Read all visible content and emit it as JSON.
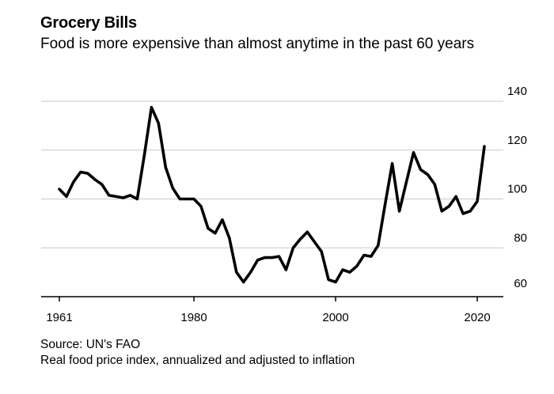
{
  "chart_data": {
    "type": "line",
    "title": "Grocery Bills",
    "subtitle": "Food is more expensive than almost anytime in the past 60 years",
    "xlabel": "",
    "ylabel": "",
    "xlim": [
      1961,
      2021
    ],
    "ylim": [
      60,
      140
    ],
    "x_ticks": [
      "1961",
      "1980",
      "2000",
      "2020"
    ],
    "x_tick_values": [
      1961,
      1980,
      2000,
      2020
    ],
    "y_ticks": [
      "60",
      "80",
      "100",
      "120",
      "140"
    ],
    "y_tick_values": [
      60,
      80,
      100,
      120,
      140
    ],
    "grid": "horizontal",
    "line_color": "#000000",
    "series": [
      {
        "x": [
          1961,
          1962,
          1963,
          1964,
          1965,
          1966,
          1967,
          1968,
          1969,
          1970,
          1971,
          1972,
          1973,
          1974,
          1975,
          1976,
          1977,
          1978,
          1979,
          1980,
          1981,
          1982,
          1983,
          1984,
          1985,
          1986,
          1987,
          1988,
          1989,
          1990,
          1991,
          1992,
          1993,
          1994,
          1995,
          1996,
          1997,
          1998,
          1999,
          2000,
          2001,
          2002,
          2003,
          2004,
          2005,
          2006,
          2007,
          2008,
          2009,
          2010,
          2011,
          2012,
          2013,
          2014,
          2015,
          2016,
          2017,
          2018,
          2019,
          2020,
          2021
        ],
        "values": [
          104,
          101,
          107,
          111,
          110.5,
          108,
          106,
          101.5,
          101,
          100.5,
          101.5,
          100,
          118,
          137.5,
          131,
          113,
          104.5,
          100,
          100,
          100,
          97,
          88,
          86,
          91.5,
          84,
          70,
          66,
          70,
          75,
          76,
          76,
          76.5,
          71,
          80,
          83.5,
          86.5,
          82.5,
          78.5,
          67,
          66,
          71,
          70,
          72.5,
          77,
          76.5,
          81,
          98,
          114.5,
          95,
          107,
          119,
          112,
          110,
          106,
          95,
          97,
          101,
          94,
          95,
          99,
          121.5
        ]
      }
    ]
  },
  "footer": {
    "source": "Source: UN's FAO",
    "note": "Real food price index, annualized and adjusted to inflation"
  }
}
